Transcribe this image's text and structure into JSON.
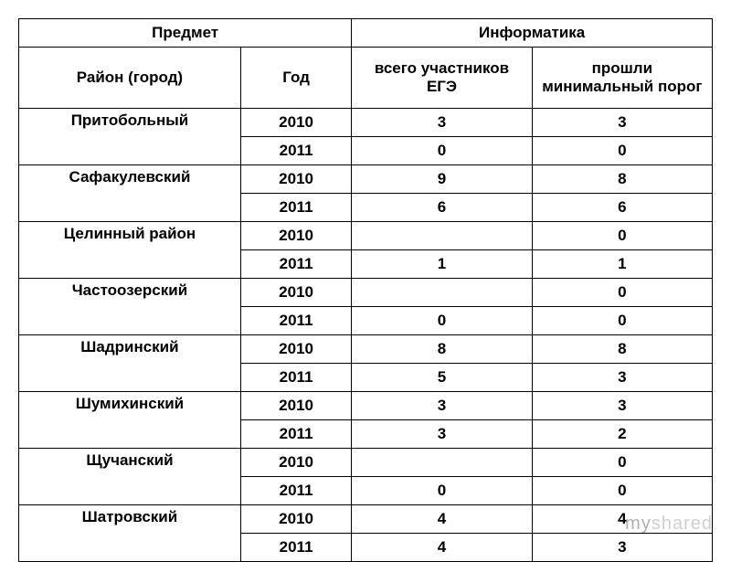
{
  "type": "table",
  "background_color": "#ffffff",
  "border_color": "#000000",
  "font_family": "Arial",
  "font_size": 17,
  "font_weight": "bold",
  "text_align": "center",
  "header": {
    "subject_label": "Предмет",
    "subject_value": "Информатика",
    "district_label": "Район (город)",
    "year_label": "Год",
    "total_label": "всего участников ЕГЭ",
    "passed_label": "прошли минимальный порог"
  },
  "districts": [
    {
      "name": "Притобольный",
      "rows": [
        {
          "year": "2010",
          "total": "3",
          "passed": "3"
        },
        {
          "year": "2011",
          "total": "0",
          "passed": "0"
        }
      ]
    },
    {
      "name": "Сафакулевский",
      "rows": [
        {
          "year": "2010",
          "total": "9",
          "passed": "8"
        },
        {
          "year": "2011",
          "total": "6",
          "passed": "6"
        }
      ]
    },
    {
      "name": "Целинный район",
      "rows": [
        {
          "year": "2010",
          "total": "",
          "passed": "0"
        },
        {
          "year": "2011",
          "total": "1",
          "passed": "1"
        }
      ]
    },
    {
      "name": "Частоозерский",
      "rows": [
        {
          "year": "2010",
          "total": "",
          "passed": "0"
        },
        {
          "year": "2011",
          "total": "0",
          "passed": "0"
        }
      ]
    },
    {
      "name": "Шадринский",
      "rows": [
        {
          "year": "2010",
          "total": "8",
          "passed": "8"
        },
        {
          "year": "2011",
          "total": "5",
          "passed": "3"
        }
      ]
    },
    {
      "name": "Шумихинский",
      "rows": [
        {
          "year": "2010",
          "total": "3",
          "passed": "3"
        },
        {
          "year": "2011",
          "total": "3",
          "passed": "2"
        }
      ]
    },
    {
      "name": "Щучанский",
      "rows": [
        {
          "year": "2010",
          "total": "",
          "passed": "0"
        },
        {
          "year": "2011",
          "total": "0",
          "passed": "0"
        }
      ]
    },
    {
      "name": "Шатровский",
      "rows": [
        {
          "year": "2010",
          "total": "4",
          "passed": "4"
        },
        {
          "year": "2011",
          "total": "4",
          "passed": "3"
        }
      ]
    }
  ],
  "watermark": {
    "prefix": "my",
    "suffix": "shared",
    "prefix_color": "#b0b0b0",
    "suffix_color": "#d0d0d0",
    "font_size": 20
  },
  "column_widths": [
    "32%",
    "16%",
    "26%",
    "26%"
  ]
}
